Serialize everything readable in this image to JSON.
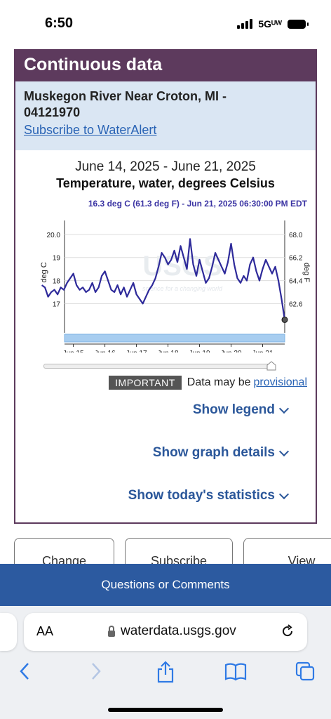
{
  "status": {
    "time": "6:50",
    "network": "5Gᵁᵂ"
  },
  "card": {
    "header": "Continuous data",
    "site_title_line1": "Muskegon River Near Croton, MI -",
    "site_title_line2": "04121970",
    "subscribe_link": "Subscribe to WaterAlert",
    "date_range": "June 14, 2025 - June 21, 2025",
    "parameter": "Temperature, water, degrees Celsius",
    "point_info": "16.3 deg C (61.3 deg F) - Jun 21, 2025 06:30:00 PM EDT",
    "important_badge": "IMPORTANT",
    "data_may_be": "Data may be",
    "provisional": "provisional",
    "show_legend": "Show legend",
    "show_graph_details": "Show graph details",
    "show_statistics": "Show today's statistics"
  },
  "chart_data": {
    "type": "line",
    "ylabel": "deg C",
    "ylabel_right": "deg F",
    "ylim": [
      16.1,
      20.3
    ],
    "y_ticks": [
      "20.0",
      "19",
      "18",
      "17"
    ],
    "y_ticks_right": [
      "68.0",
      "66.2",
      "64.4",
      "62.6"
    ],
    "x_ticks": [
      "Jun 15",
      "Jun 16",
      "Jun 17",
      "Jun 18",
      "Jun 19",
      "Jun 20",
      "Jun 21"
    ],
    "watermark": "USGS",
    "watermark_tagline": "science for a changing world",
    "line_color": "#2e2a9a",
    "x_unit": "days since Jun 14 00:00",
    "series": [
      {
        "name": "Temperature",
        "x": [
          0.0,
          0.1,
          0.2,
          0.3,
          0.4,
          0.5,
          0.6,
          0.7,
          0.8,
          0.9,
          1.0,
          1.1,
          1.2,
          1.3,
          1.4,
          1.5,
          1.6,
          1.7,
          1.8,
          1.9,
          2.0,
          2.1,
          2.2,
          2.3,
          2.4,
          2.5,
          2.6,
          2.7,
          2.8,
          2.9,
          3.0,
          3.1,
          3.2,
          3.3,
          3.4,
          3.5,
          3.6,
          3.7,
          3.8,
          3.9,
          4.0,
          4.1,
          4.2,
          4.3,
          4.4,
          4.5,
          4.6,
          4.7,
          4.8,
          4.9,
          5.0,
          5.1,
          5.2,
          5.3,
          5.4,
          5.5,
          5.6,
          5.7,
          5.8,
          5.9,
          6.0,
          6.1,
          6.2,
          6.3,
          6.4,
          6.5,
          6.6,
          6.7,
          6.8,
          6.9,
          7.0,
          7.1,
          7.2,
          7.3,
          7.4,
          7.5,
          7.6,
          7.7
        ],
        "y": [
          17.8,
          17.7,
          17.3,
          17.5,
          17.6,
          17.4,
          17.7,
          17.6,
          17.9,
          18.1,
          18.3,
          17.8,
          17.6,
          17.7,
          17.5,
          17.6,
          17.9,
          17.5,
          17.7,
          18.2,
          18.4,
          18.0,
          17.6,
          17.5,
          17.8,
          17.4,
          17.7,
          17.3,
          17.6,
          17.9,
          17.4,
          17.2,
          17.0,
          17.3,
          17.6,
          17.8,
          18.1,
          18.6,
          19.2,
          19.0,
          18.7,
          18.9,
          19.3,
          18.8,
          19.5,
          19.0,
          18.5,
          19.8,
          18.7,
          18.2,
          18.9,
          18.4,
          17.9,
          18.1,
          18.6,
          19.2,
          18.9,
          18.6,
          18.3,
          18.8,
          19.6,
          18.7,
          18.1,
          17.9,
          18.2,
          18.0,
          18.7,
          19.0,
          18.4,
          18.0,
          18.5,
          18.9,
          18.6,
          18.3,
          18.6,
          18.0,
          17.2,
          16.3
        ]
      }
    ]
  },
  "buttons": {
    "change": "Change",
    "subscribe": "Subscribe",
    "view": "View"
  },
  "questions_bar": "Questions or Comments",
  "safari": {
    "aa": "AA",
    "url": "waterdata.usgs.gov"
  }
}
